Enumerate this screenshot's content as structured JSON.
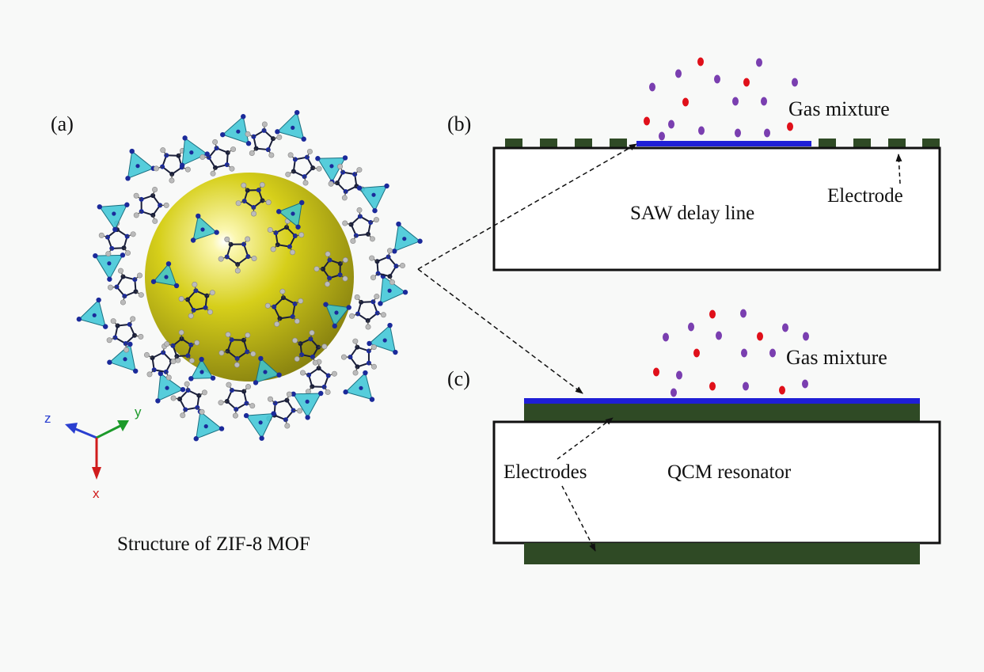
{
  "panels": {
    "a": {
      "label": "(a)",
      "caption": "Structure of ZIF-8 MOF",
      "axes": {
        "z": "z",
        "y": "y",
        "x": "x"
      }
    },
    "b": {
      "label": "(b)",
      "gas_label": "Gas mixture",
      "device_label": "SAW delay line",
      "electrode_label": "Electrode"
    },
    "c": {
      "label": "(c)",
      "gas_label": "Gas mixture",
      "device_label": "QCM resonator",
      "electrodes_label": "Electrodes"
    }
  },
  "colors": {
    "background": "#f8f9f8",
    "sphere": "#d9d21c",
    "tetrahedra": "#39c6d6",
    "electrode": "#2f4a25",
    "sensing_film": "#1f1fd6",
    "gas_red": "#e0101a",
    "gas_purple": "#7a3fb0",
    "axis_z": "#2a3fd0",
    "axis_y": "#1c9a2a",
    "axis_x": "#d01c1c"
  }
}
